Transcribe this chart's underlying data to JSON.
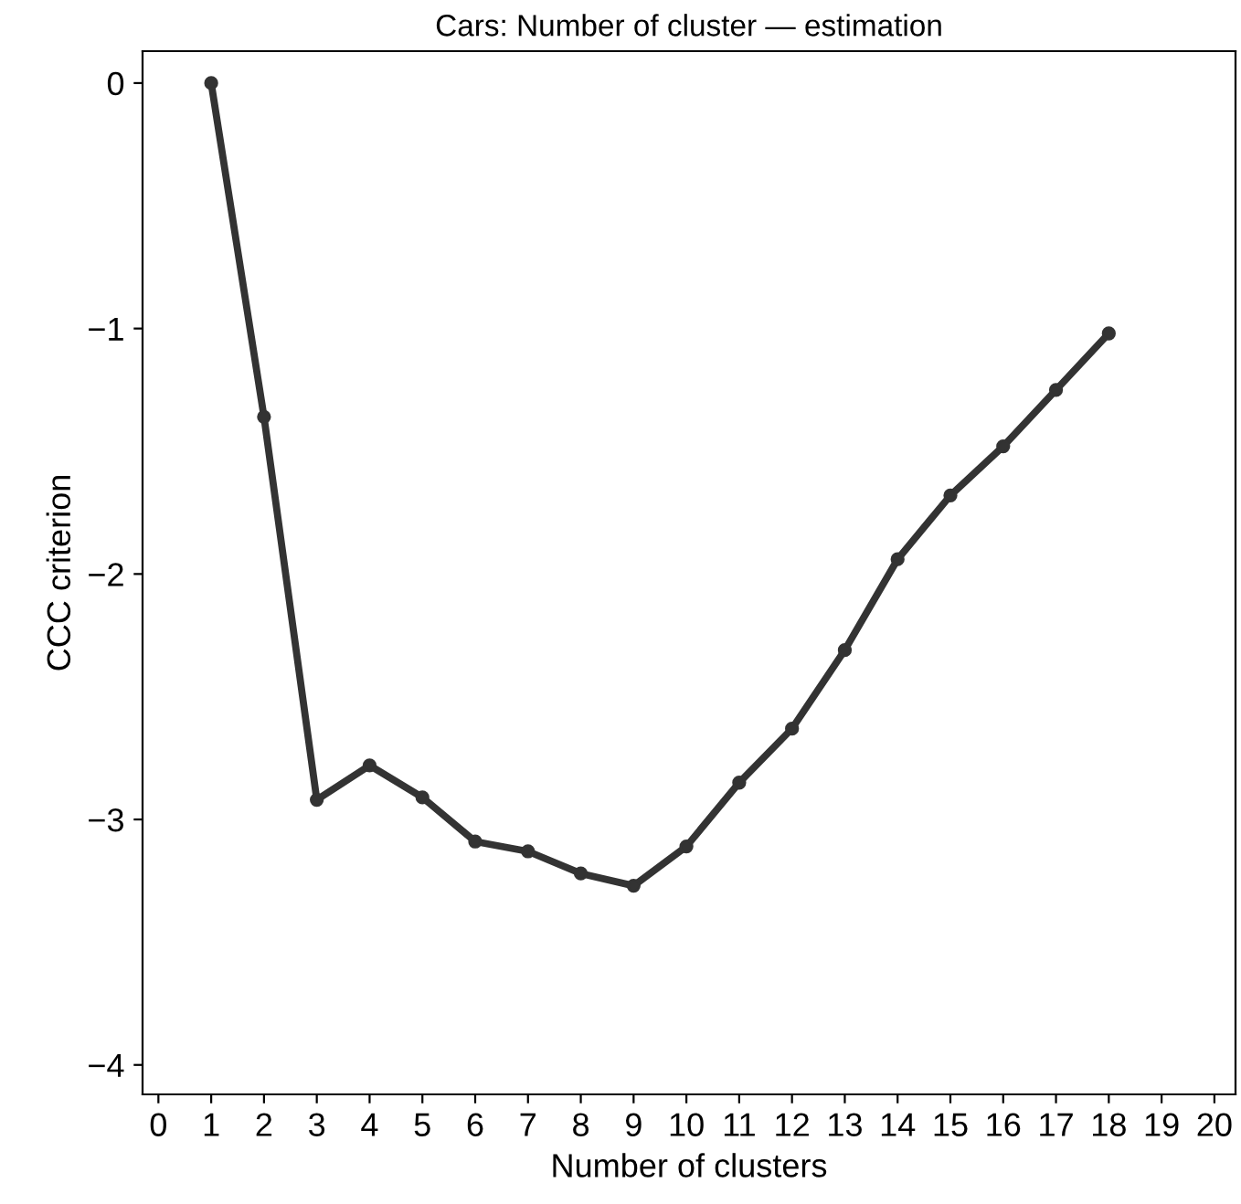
{
  "chart_data": {
    "type": "line",
    "title": "Cars: Number of cluster — estimation",
    "xlabel": "Number of clusters",
    "ylabel": "CCC criterion",
    "x": [
      1,
      2,
      3,
      4,
      5,
      6,
      7,
      8,
      9,
      10,
      11,
      12,
      13,
      14,
      15,
      16,
      17,
      18
    ],
    "series": [
      {
        "color": "#333333",
        "values": [
          0,
          -1.36,
          -2.92,
          -2.78,
          -2.91,
          -3.09,
          -3.13,
          -3.22,
          -3.27,
          -3.11,
          -2.85,
          -2.63,
          -2.31,
          -1.94,
          -1.68,
          -1.48,
          -1.25,
          -1.02
        ]
      }
    ],
    "xlim": [
      -0.3,
      20.4
    ],
    "ylim": [
      -4.12,
      0.13
    ],
    "xticks": [
      0,
      1,
      2,
      3,
      4,
      5,
      6,
      7,
      8,
      9,
      10,
      11,
      12,
      13,
      14,
      15,
      16,
      17,
      18,
      19,
      20
    ],
    "yticks": [
      {
        "value": 0,
        "label": "0"
      },
      {
        "value": -1,
        "label": "−1"
      },
      {
        "value": -2,
        "label": "−2"
      },
      {
        "value": -3,
        "label": "−3"
      },
      {
        "value": -4,
        "label": "−4"
      }
    ],
    "marker": "circle",
    "line_style": "solid",
    "grid": false,
    "legend": false
  }
}
